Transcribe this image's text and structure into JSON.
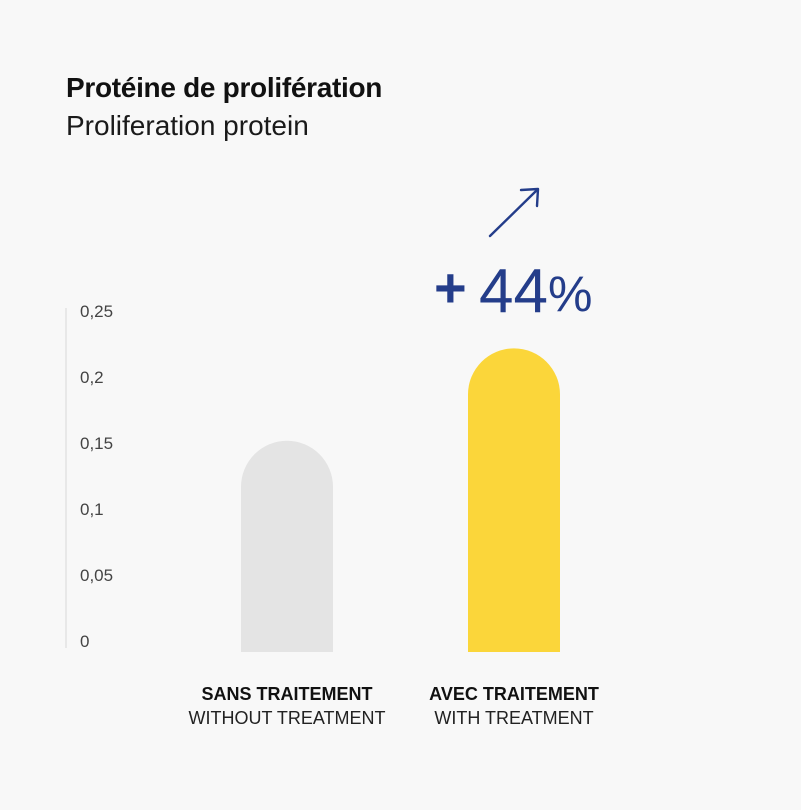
{
  "title": "Protéine de prolifération",
  "subtitle": "Proliferation protein",
  "annotation": {
    "plus": "+",
    "number": "44",
    "percent": "%",
    "color": "#243d8a",
    "icon": "arrow-up-right-icon"
  },
  "colors": {
    "without": "#e4e4e4",
    "with": "#fbd63a",
    "axis": "#d8d8d8"
  },
  "chart_data": {
    "type": "bar",
    "categories": [
      "SANS TRAITEMENT",
      "AVEC TRAITEMENT"
    ],
    "category_sublabels": [
      "WITHOUT TREATMENT",
      "WITH TREATMENT"
    ],
    "values": [
      0.16,
      0.23
    ],
    "ylim": [
      0,
      0.25
    ],
    "yticks": [
      0,
      0.05,
      0.1,
      0.15,
      0.2,
      0.25
    ],
    "ytick_labels": [
      "0",
      "0,05",
      "0,1",
      "0,15",
      "0,2",
      "0,25"
    ],
    "grid": false,
    "legend": "none"
  }
}
